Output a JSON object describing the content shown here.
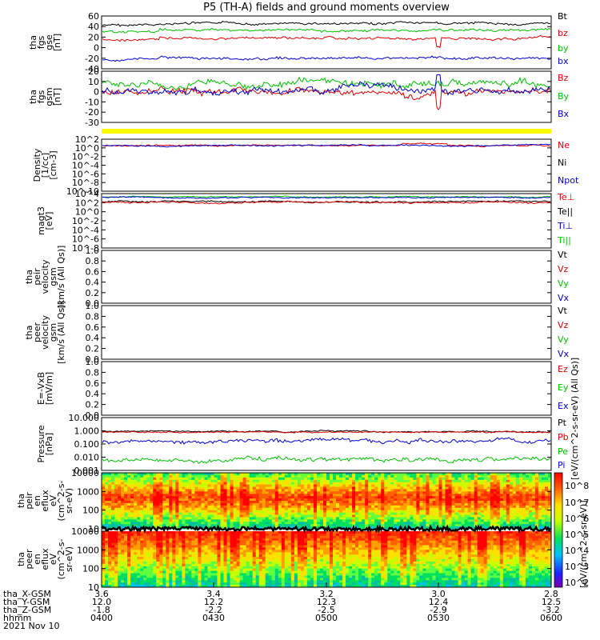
{
  "title": "P5 (TH-A) fields and ground moments overview",
  "chart_data": [
    {
      "type": "line",
      "panel": "fgs-gse",
      "ylabel": [
        "tha",
        "fgs",
        "gse",
        "[nT]"
      ],
      "yticks": [
        60,
        40,
        20,
        0,
        -20,
        -40
      ],
      "ylim": [
        -40,
        60
      ],
      "legend": [
        {
          "name": "Bt",
          "color": "#000000"
        },
        {
          "name": "bz",
          "color": "#e00000"
        },
        {
          "name": "by",
          "color": "#00c000"
        },
        {
          "name": "bx",
          "color": "#0000d0"
        }
      ],
      "series": [
        {
          "name": "Bt",
          "color": "#000000",
          "base": 45
        },
        {
          "name": "bz",
          "color": "#e00000",
          "base": 18
        },
        {
          "name": "by",
          "color": "#00c000",
          "base": 33
        },
        {
          "name": "bx",
          "color": "#0000d0",
          "base": -20
        }
      ]
    },
    {
      "type": "line",
      "panel": "fgs-gsm",
      "ylabel": [
        "tha",
        "fgs",
        "gsm",
        "[nT]"
      ],
      "yticks": [
        20,
        10,
        0,
        -10,
        -20,
        -30
      ],
      "ylim": [
        -35,
        20
      ],
      "legend": [
        {
          "name": "Bz",
          "color": "#e00000"
        },
        {
          "name": "By",
          "color": "#00c000"
        },
        {
          "name": "Bx",
          "color": "#0000d0"
        }
      ],
      "series": [
        {
          "name": "Bz",
          "color": "#e00000",
          "base": -3
        },
        {
          "name": "By",
          "color": "#00c000",
          "base": 6
        },
        {
          "name": "Bx",
          "color": "#0000d0",
          "base": -1
        }
      ]
    },
    {
      "type": "line",
      "panel": "density",
      "ylabel": [
        "Density",
        "[1/cc]",
        "[cm-3]"
      ],
      "yticks": [
        "10^2",
        "10^0",
        "10^-2",
        "10^-4",
        "10^-6",
        "10^-8",
        "10^-10"
      ],
      "ylim": [
        "10^-10",
        "10^2"
      ],
      "log": true,
      "legend": [
        {
          "name": "Ne",
          "color": "#e00000"
        },
        {
          "name": "Ni",
          "color": "#000000"
        },
        {
          "name": "Npot",
          "color": "#0000d0"
        }
      ]
    },
    {
      "type": "line",
      "panel": "temperature",
      "ylabel": [
        "magt3",
        "[eV]"
      ],
      "yticks": [
        "10^4",
        "10^2",
        "10^0",
        "10^-2",
        "10^-4",
        "10^-6",
        "10^-8"
      ],
      "ylim": [
        "10^-8",
        "10^4"
      ],
      "log": true,
      "legend": [
        {
          "name": "Te⊥",
          "color": "#e00000"
        },
        {
          "name": "Te||",
          "color": "#000000"
        },
        {
          "name": "Ti⊥",
          "color": "#0000d0"
        },
        {
          "name": "Ti||",
          "color": "#00c000"
        }
      ]
    },
    {
      "type": "line",
      "panel": "peir-velocity",
      "ylabel": [
        "tha",
        "peir",
        "velocity",
        "gsm",
        "[km/s (All Qs)]"
      ],
      "yticks": [
        "1.0",
        "0.8",
        "0.6",
        "0.4",
        "0.2",
        "0.0"
      ],
      "ylim": [
        0,
        1
      ],
      "legend": [
        {
          "name": "Vt",
          "color": "#000000"
        },
        {
          "name": "Vz",
          "color": "#e00000"
        },
        {
          "name": "Vy",
          "color": "#00c000"
        },
        {
          "name": "Vx",
          "color": "#0000d0"
        }
      ]
    },
    {
      "type": "line",
      "panel": "peer-velocity",
      "ylabel": [
        "tha",
        "peer",
        "velocity",
        "gsm",
        "[km/s (All Qs)]"
      ],
      "yticks": [
        "1.0",
        "0.8",
        "0.6",
        "0.4",
        "0.2",
        "0.0"
      ],
      "ylim": [
        0,
        1
      ],
      "legend": [
        {
          "name": "Vt",
          "color": "#000000"
        },
        {
          "name": "Vz",
          "color": "#e00000"
        },
        {
          "name": "Vy",
          "color": "#00c000"
        },
        {
          "name": "Vx",
          "color": "#0000d0"
        }
      ]
    },
    {
      "type": "line",
      "panel": "efield",
      "ylabel": [
        "E=-VxB",
        "[mV/m]"
      ],
      "yticks": [
        "1.0",
        "0.8",
        "0.6",
        "0.4",
        "0.2",
        "0.0"
      ],
      "ylim": [
        0,
        1
      ],
      "legend": [
        {
          "name": "Ez",
          "color": "#e00000"
        },
        {
          "name": "Ey",
          "color": "#00c000"
        },
        {
          "name": "Ex",
          "color": "#0000d0"
        }
      ]
    },
    {
      "type": "line",
      "panel": "pressure",
      "ylabel": [
        "Pressure",
        "[nPa]"
      ],
      "yticks": [
        "10.000",
        "1.000",
        "0.100",
        "0.010",
        "0.001"
      ],
      "ylim": [
        0.001,
        10
      ],
      "log": true,
      "legend": [
        {
          "name": "Pt",
          "color": "#000000"
        },
        {
          "name": "Pb",
          "color": "#e00000"
        },
        {
          "name": "Pe",
          "color": "#00c000"
        },
        {
          "name": "Pi",
          "color": "#0000d0"
        }
      ],
      "series": [
        {
          "name": "Pt",
          "color": "#000000",
          "base": 0.9
        },
        {
          "name": "Pb",
          "color": "#e00000",
          "base": 0.8
        },
        {
          "name": "Pi",
          "color": "#0000d0",
          "base": 0.15
        },
        {
          "name": "Pe",
          "color": "#00c000",
          "base": 0.006
        }
      ]
    },
    {
      "type": "heatmap",
      "panel": "peir-spectrogram",
      "ylabel": [
        "tha",
        "peir",
        "en",
        "eflux",
        "eV",
        "(cm^2-s-",
        "sr-eV)"
      ],
      "yticks": [
        "10000",
        "1000",
        "100",
        "10"
      ],
      "ylim": [
        5,
        20000
      ],
      "log": true
    },
    {
      "type": "heatmap",
      "panel": "peer-spectrogram",
      "ylabel": [
        "tha",
        "peer",
        "en",
        "eflux",
        "eV",
        "(cm^2-s-",
        "sr-eV)"
      ],
      "yticks": [
        "10000",
        "1000",
        "100",
        "10"
      ],
      "ylim": [
        5,
        20000
      ],
      "log": true
    }
  ],
  "colorbar": {
    "ticks": [
      "10^8",
      "10^7",
      "10^6",
      "10^5",
      "10^4",
      "10^3",
      "10^2"
    ],
    "label": "[eV/(cm^2-s-sr-eV)]",
    "label2": "[eV/(cm^2-s-sr-eV) (All Qs)]"
  },
  "xaxis": {
    "rows": [
      {
        "name": "tha_X-GSM",
        "values": [
          "3.6",
          "3.4",
          "3.2",
          "3.0",
          "2.8"
        ]
      },
      {
        "name": "tha_Y-GSM",
        "values": [
          "12.0",
          "12.2",
          "12.3",
          "12.4",
          "12.5"
        ]
      },
      {
        "name": "tha_Z-GSM",
        "values": [
          "-1.8",
          "-2.2",
          "-2.5",
          "-2.9",
          "-3.2"
        ]
      },
      {
        "name": "hhmm",
        "values": [
          "0400",
          "0430",
          "0500",
          "0530",
          "0600"
        ]
      }
    ],
    "date": "2021 Nov 10"
  }
}
